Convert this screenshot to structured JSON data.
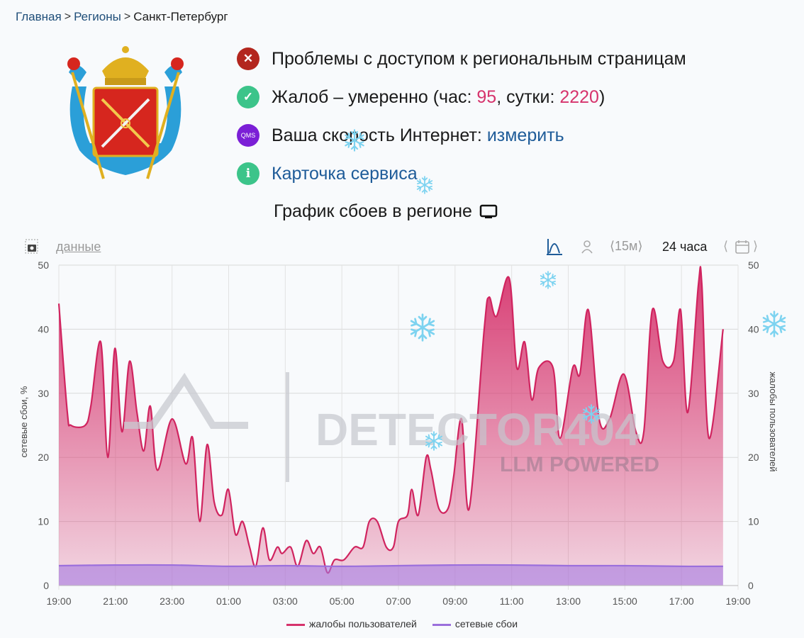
{
  "breadcrumb": {
    "items": [
      "Главная",
      "Регионы",
      "Санкт-Петербург"
    ]
  },
  "status": {
    "access": "Проблемы с доступом к региональным страницам",
    "complaints_prefix": "Жалоб – умеренно (час: ",
    "complaints_hour": "95",
    "complaints_mid": ", сутки: ",
    "complaints_day": "2220",
    "complaints_suffix": ")",
    "speed_label": "Ваша скорость Интернет: ",
    "speed_link": "измерить",
    "speed_icon_text": "QMS",
    "service_card": "Карточка сервиса"
  },
  "graph_title": "График сбоев в регионе",
  "toolbar": {
    "data_link": "данные",
    "interval": "15м",
    "period": "24 часа"
  },
  "watermark": {
    "title": "DETECTOR404",
    "subtitle": "LLM POWERED"
  },
  "colors": {
    "complaints": "#d6336c",
    "network": "#9b6fdc",
    "link": "#1f5c99",
    "error": "#b3261e",
    "ok": "#3cc48a",
    "info": "#3cc48a",
    "qms": "#7b1fd6"
  },
  "chart_data": {
    "type": "area",
    "xlabel": "",
    "ylabel_left": "сетевые сбои, %",
    "ylabel_right": "жалобы пользователей",
    "ylim": [
      0,
      50
    ],
    "yticks": [
      0,
      10,
      20,
      30,
      40,
      50
    ],
    "xticks": [
      "19:00",
      "21:00",
      "23:00",
      "01:00",
      "03:00",
      "05:00",
      "07:00",
      "09:00",
      "11:00",
      "13:00",
      "15:00",
      "17:00",
      "19:00"
    ],
    "x_unit": "hours since 19:00",
    "xlim": [
      0,
      24
    ],
    "grid": true,
    "legend": "bottom",
    "series": [
      {
        "name": "жалобы пользователей",
        "x": [
          0,
          0.3,
          0.43,
          0.93,
          1.13,
          1.48,
          1.73,
          1.98,
          2.23,
          2.5,
          2.76,
          3.0,
          3.23,
          3.48,
          4.0,
          4.48,
          4.73,
          4.98,
          5.24,
          5.49,
          5.76,
          5.99,
          6.24,
          6.49,
          6.74,
          6.96,
          7.21,
          7.44,
          7.72,
          7.89,
          8.19,
          8.44,
          8.74,
          8.99,
          9.24,
          9.49,
          9.74,
          10.07,
          10.45,
          10.75,
          10.97,
          11.25,
          11.57,
          11.82,
          12.0,
          12.32,
          12.47,
          12.7,
          12.98,
          13.15,
          13.43,
          13.75,
          13.95,
          14.23,
          14.5,
          15.03,
          15.2,
          15.46,
          15.91,
          16.18,
          16.46,
          16.71,
          16.96,
          17.46,
          17.71,
          18.16,
          18.41,
          18.71,
          19.09,
          19.46,
          19.96,
          20.39,
          20.67,
          20.97,
          21.34,
          21.72,
          21.97,
          22.22,
          22.6,
          22.72,
          22.97,
          23.47
        ],
        "values": [
          44,
          27,
          25,
          25,
          28,
          38,
          20,
          37,
          24,
          35,
          27,
          21,
          28,
          18,
          26,
          19,
          23,
          10,
          22,
          13,
          11,
          15,
          8,
          10,
          6,
          3,
          9,
          4,
          6,
          5,
          6,
          3,
          7,
          5,
          6,
          2,
          4,
          4,
          6,
          6,
          10,
          10,
          6,
          6,
          10,
          11,
          15,
          11,
          20,
          18,
          12,
          12,
          17,
          26,
          12,
          40,
          45,
          42,
          48,
          34,
          38,
          29,
          34,
          34,
          23,
          34,
          33,
          43,
          26,
          26,
          33,
          24,
          24,
          43,
          35,
          35,
          43,
          27,
          47,
          47,
          23,
          40
        ]
      },
      {
        "name": "сетевые сбои",
        "x": [
          0,
          2,
          4,
          6,
          8,
          10,
          12,
          14,
          16,
          18,
          20,
          22,
          23.47
        ],
        "values": [
          3.1,
          3.2,
          3.2,
          3.0,
          3.1,
          3.0,
          3.1,
          3.2,
          3.2,
          3.1,
          3.1,
          3.0,
          3.0
        ]
      }
    ]
  }
}
